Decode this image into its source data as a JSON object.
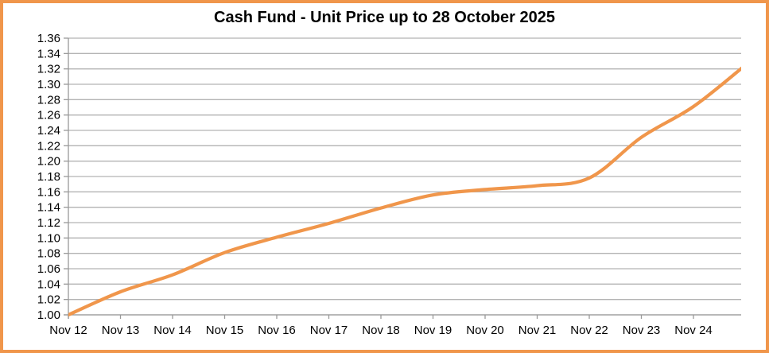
{
  "frame": {
    "border_color": "#F0964B",
    "background_color": "#FFFFFF",
    "grid_color": "#B3B3B3",
    "axis_color": "#999999",
    "text_color": "#000000"
  },
  "chart_data": {
    "type": "line",
    "title": "Cash Fund - Unit Price up to 28 October 2025",
    "xlabel": "",
    "ylabel": "",
    "categories": [
      "Nov 12",
      "Nov 13",
      "Nov 14",
      "Nov 15",
      "Nov 16",
      "Nov 17",
      "Nov 18",
      "Nov 19",
      "Nov 20",
      "Nov 21",
      "Nov 22",
      "Nov 23",
      "Nov 24"
    ],
    "values": [
      1.0,
      1.03,
      1.052,
      1.081,
      1.101,
      1.119,
      1.139,
      1.156,
      1.163,
      1.168,
      1.178,
      1.231,
      1.271,
      1.325
    ],
    "trailing_unlabeled_points": 1,
    "ylim": [
      1.0,
      1.36
    ],
    "ytick_step": 0.02,
    "ytick_decimals": 2,
    "grid": "horizontal",
    "legend": "none",
    "line_color": "#F0964B"
  }
}
